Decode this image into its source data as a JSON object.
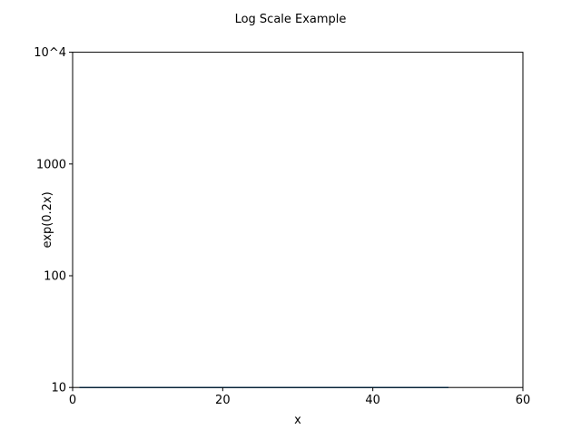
{
  "chart_data": {
    "type": "line",
    "title": "Log Scale Example",
    "xlabel": "x",
    "ylabel": "exp(0.2x)",
    "xlim": [
      0,
      60
    ],
    "ylim": [
      10,
      10000
    ],
    "y_scale": "log",
    "grid": false,
    "x_ticks": [
      {
        "value": 0,
        "label": "0"
      },
      {
        "value": 20,
        "label": "20"
      },
      {
        "value": 40,
        "label": "40"
      },
      {
        "value": 60,
        "label": "60"
      }
    ],
    "y_ticks": [
      {
        "value": 10,
        "label": "10"
      },
      {
        "value": 100,
        "label": "100"
      },
      {
        "value": 1000,
        "label": "1000"
      },
      {
        "value": 10000,
        "label": "10^4"
      }
    ],
    "series": [
      {
        "color": "#1f77b4",
        "x": [
          1,
          10,
          20,
          30,
          40,
          50
        ],
        "y": [
          10,
          10,
          10,
          10,
          10,
          10
        ]
      }
    ]
  }
}
